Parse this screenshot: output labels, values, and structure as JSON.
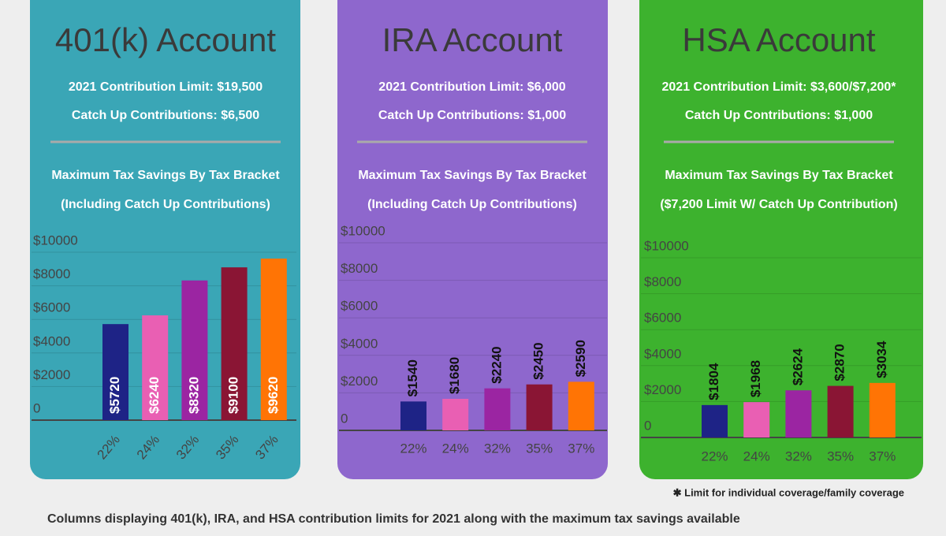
{
  "chart_data": [
    {
      "type": "bar",
      "background": "#3aa6b6",
      "title": "401(k) Account",
      "contribution_limit": "2021 Contribution Limit: $19,500",
      "catch_up": "Catch Up Contributions: $6,500",
      "chart_title": "Maximum Tax Savings By Tax Bracket",
      "chart_subtitle": "(Including Catch Up Contributions)",
      "categories": [
        "22%",
        "24%",
        "32%",
        "35%",
        "37%"
      ],
      "values": [
        5720,
        6240,
        8320,
        9100,
        9620
      ],
      "value_labels": [
        "$5720",
        "$6240",
        "$8320",
        "$9100",
        "$9620"
      ],
      "colors": [
        "#1e2386",
        "#e95fb3",
        "#9b25a2",
        "#8a1534",
        "#ff7405"
      ],
      "value_label_position": "inside",
      "ylim": [
        0,
        10000
      ],
      "yticks": [
        0,
        {
          "value": 2000,
          "label": "$2000"
        },
        {
          "value": 4000,
          "label": "$4000"
        },
        {
          "value": 6000,
          "label": "$6000"
        },
        {
          "value": 8000,
          "label": "$8000"
        },
        {
          "value": 10000,
          "label": "$10000"
        }
      ],
      "grid": true
    },
    {
      "type": "bar",
      "background": "#8e67cd",
      "title": "IRA Account",
      "contribution_limit": "2021 Contribution Limit: $6,000",
      "catch_up": "Catch Up Contributions: $1,000",
      "chart_title": "Maximum Tax Savings By Tax Bracket",
      "chart_subtitle": "(Including Catch Up Contributions)",
      "categories": [
        "22%",
        "24%",
        "32%",
        "35%",
        "37%"
      ],
      "values": [
        1540,
        1680,
        2240,
        2450,
        2590
      ],
      "value_labels": [
        "$1540",
        "$1680",
        "$2240",
        "$2450",
        "$2590"
      ],
      "colors": [
        "#1e2386",
        "#e95fb3",
        "#9b25a2",
        "#8a1534",
        "#ff7405"
      ],
      "value_label_position": "above",
      "ylim": [
        0,
        10000
      ],
      "yticks": [
        0,
        {
          "value": 2000,
          "label": "$2000"
        },
        {
          "value": 4000,
          "label": "$4000"
        },
        {
          "value": 6000,
          "label": "$6000"
        },
        {
          "value": 8000,
          "label": "$8000"
        },
        {
          "value": 10000,
          "label": "$10000"
        }
      ],
      "grid": true
    },
    {
      "type": "bar",
      "background": "#3db22e",
      "title": "HSA Account",
      "contribution_limit": "2021 Contribution Limit: $3,600/$7,200*",
      "catch_up": "Catch Up Contributions: $1,000",
      "chart_title": "Maximum Tax Savings By Tax Bracket",
      "chart_subtitle": "($7,200 Limit W/ Catch Up Contribution)",
      "categories": [
        "22%",
        "24%",
        "32%",
        "35%",
        "37%"
      ],
      "values": [
        1804,
        1968,
        2624,
        2870,
        3034
      ],
      "value_labels": [
        "$1804",
        "$1968",
        "$2624",
        "$2870",
        "$3034"
      ],
      "colors": [
        "#1e2386",
        "#e95fb3",
        "#9b25a2",
        "#8a1534",
        "#ff7405"
      ],
      "value_label_position": "above",
      "ylim": [
        0,
        10000
      ],
      "yticks": [
        0,
        {
          "value": 2000,
          "label": "$2000"
        },
        {
          "value": 4000,
          "label": "$4000"
        },
        {
          "value": 6000,
          "label": "$6000"
        },
        {
          "value": 8000,
          "label": "$8000"
        },
        {
          "value": 10000,
          "label": "$10000"
        }
      ],
      "grid": true
    }
  ],
  "footnote": "✱ Limit for individual coverage/family coverage",
  "caption": "Columns displaying 401(k), IRA, and HSA contribution limits for 2021 along with the maximum tax savings available"
}
